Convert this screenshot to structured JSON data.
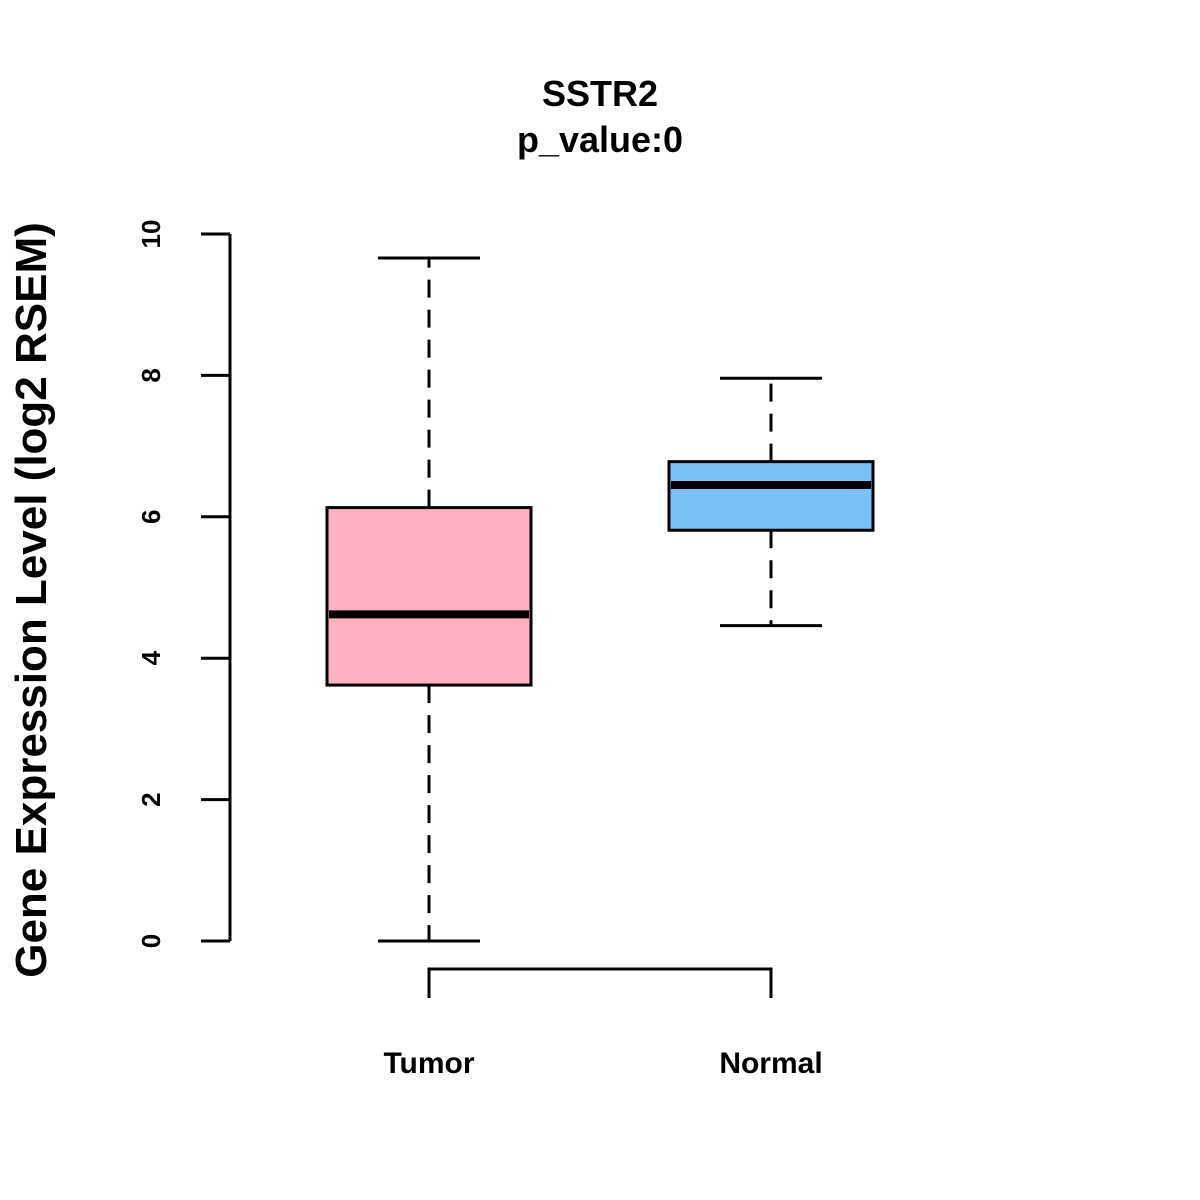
{
  "chart_data": {
    "type": "boxplot",
    "title": "SSTR2",
    "subtitle": "p_value:0",
    "xlabel": "",
    "ylabel": "Gene Expression Level (log2 RSEM)",
    "ylim": [
      0,
      10
    ],
    "yticks": [
      "0",
      "2",
      "4",
      "6",
      "8",
      "10"
    ],
    "grid": false,
    "categories": [
      "Tumor",
      "Normal"
    ],
    "boxes": [
      {
        "name": "Tumor",
        "min": 0.0,
        "q1": 3.62,
        "median": 4.62,
        "q3": 6.13,
        "max": 9.66,
        "color": "#ffb0c1"
      },
      {
        "name": "Normal",
        "min": 4.46,
        "q1": 5.81,
        "median": 6.45,
        "q3": 6.78,
        "max": 7.96,
        "color": "#7ac1f8"
      }
    ],
    "significance_bracket": {
      "from": "Tumor",
      "to": "Normal"
    }
  }
}
